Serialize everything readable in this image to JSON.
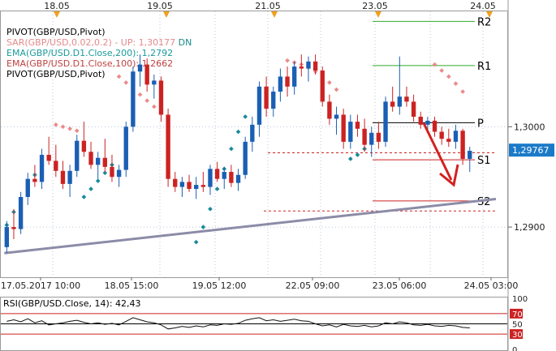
{
  "chart_data": {
    "type": "line",
    "title": "",
    "top_dates": [
      "18.05",
      "19.05",
      "21.05",
      "23.05",
      "24.05"
    ],
    "x_labels": [
      "17.05.2017 10:00",
      "18.05 15:00",
      "19.05 12:00",
      "22.05 09:00",
      "23.05 06:00",
      "24.05 03:00"
    ],
    "ylim": [
      1.285,
      1.3115
    ],
    "y_ticks": [
      {
        "value": 1.3,
        "label": "1,3000"
      },
      {
        "value": 1.29,
        "label": "1,2900"
      }
    ],
    "current_price": {
      "value": 1.29767,
      "label": "1,29767"
    },
    "legend": [
      {
        "text": "PIVOT(GBP/USD,Pivot)",
        "color": "#000000"
      },
      {
        "text": "SAR(GBP/USD,0.02,0.2) -  UP: 1,30177",
        "color": "#e58a8a"
      },
      {
        "text": "DN",
        "color": "#1a8a8a"
      },
      {
        "text": "EMA(GBP/USD.D1.Close,200): 1,2792",
        "color": "#1a9a9a"
      },
      {
        "text": "EMA(GBP/USD.D1.Close,100): 1,2662",
        "color": "#c04040"
      },
      {
        "text": "PIVOT(GBP/USD,Pivot)",
        "color": "#000000"
      }
    ],
    "pivots": [
      {
        "name": "R2",
        "value": 1.3105,
        "color": "#2eaa2e"
      },
      {
        "name": "R1",
        "value": 1.3061,
        "color": "#2eaa2e"
      },
      {
        "name": "P",
        "value": 1.3004,
        "color": "#000000"
      },
      {
        "name": "S1",
        "value": 1.2967,
        "color": "#cc2222"
      },
      {
        "name": "S2",
        "value": 1.2926,
        "color": "#cc2222"
      }
    ],
    "candles": [
      [
        1.288,
        1.2906,
        1.2874,
        1.29
      ],
      [
        1.29,
        1.2918,
        1.2888,
        1.2898
      ],
      [
        1.2898,
        1.2935,
        1.2893,
        1.293
      ],
      [
        1.293,
        1.2954,
        1.2922,
        1.2948
      ],
      [
        1.2948,
        1.2962,
        1.294,
        1.2945
      ],
      [
        1.2945,
        1.2978,
        1.2938,
        1.2972
      ],
      [
        1.2972,
        1.299,
        1.2962,
        1.2966
      ],
      [
        1.2966,
        1.2982,
        1.295,
        1.2956
      ],
      [
        1.2956,
        1.2966,
        1.2938,
        1.2943
      ],
      [
        1.2943,
        1.2962,
        1.293,
        1.2956
      ],
      [
        1.2956,
        1.2992,
        1.295,
        1.2986
      ],
      [
        1.2986,
        1.3005,
        1.297,
        1.2975
      ],
      [
        1.2975,
        1.2985,
        1.2958,
        1.2962
      ],
      [
        1.2962,
        1.2975,
        1.2948,
        1.2969
      ],
      [
        1.2969,
        1.2988,
        1.2955,
        1.296
      ],
      [
        1.296,
        1.2972,
        1.2945,
        1.295
      ],
      [
        1.295,
        1.2962,
        1.294,
        1.2957
      ],
      [
        1.2957,
        1.3005,
        1.295,
        1.3
      ],
      [
        1.3,
        1.306,
        1.2995,
        1.3055
      ],
      [
        1.3055,
        1.3072,
        1.304,
        1.3062
      ],
      [
        1.3062,
        1.3068,
        1.3035,
        1.3042
      ],
      [
        1.3042,
        1.3052,
        1.3028,
        1.3046
      ],
      [
        1.3046,
        1.305,
        1.3005,
        1.3012
      ],
      [
        1.3012,
        1.3018,
        1.294,
        1.2948
      ],
      [
        1.2948,
        1.2955,
        1.2935,
        1.294
      ],
      [
        1.294,
        1.295,
        1.293,
        1.2945
      ],
      [
        1.2945,
        1.2952,
        1.2935,
        1.2938
      ],
      [
        1.2938,
        1.295,
        1.2928,
        1.2942
      ],
      [
        1.2942,
        1.2955,
        1.2935,
        1.294
      ],
      [
        1.294,
        1.2962,
        1.2932,
        1.2958
      ],
      [
        1.2958,
        1.2965,
        1.2945,
        1.2948
      ],
      [
        1.2948,
        1.296,
        1.2938,
        1.2955
      ],
      [
        1.2955,
        1.2962,
        1.294,
        1.2944
      ],
      [
        1.2944,
        1.2958,
        1.2936,
        1.2952
      ],
      [
        1.2952,
        1.299,
        1.2948,
        1.2985
      ],
      [
        1.2985,
        1.301,
        1.2975,
        1.3002
      ],
      [
        1.3002,
        1.3045,
        1.299,
        1.304
      ],
      [
        1.304,
        1.305,
        1.301,
        1.3018
      ],
      [
        1.3018,
        1.304,
        1.301,
        1.3035
      ],
      [
        1.3035,
        1.3058,
        1.3025,
        1.305
      ],
      [
        1.305,
        1.306,
        1.303,
        1.304
      ],
      [
        1.304,
        1.3065,
        1.3032,
        1.306
      ],
      [
        1.306,
        1.3072,
        1.305,
        1.3058
      ],
      [
        1.3058,
        1.307,
        1.3045,
        1.3065
      ],
      [
        1.3065,
        1.3072,
        1.3052,
        1.3056
      ],
      [
        1.3056,
        1.306,
        1.302,
        1.3025
      ],
      [
        1.3025,
        1.3032,
        1.3002,
        1.3008
      ],
      [
        1.3008,
        1.302,
        1.2992,
        1.3012
      ],
      [
        1.3012,
        1.3018,
        1.2978,
        1.2985
      ],
      [
        1.2985,
        1.3012,
        1.2978,
        1.3005
      ],
      [
        1.3005,
        1.3012,
        1.299,
        1.2998
      ],
      [
        1.2998,
        1.3008,
        1.2975,
        1.2982
      ],
      [
        1.2982,
        1.3,
        1.297,
        1.2994
      ],
      [
        1.2994,
        1.3005,
        1.2978,
        1.2985
      ],
      [
        1.2985,
        1.303,
        1.298,
        1.3025
      ],
      [
        1.3025,
        1.304,
        1.3015,
        1.302
      ],
      [
        1.302,
        1.307,
        1.3012,
        1.303
      ],
      [
        1.303,
        1.304,
        1.302,
        1.3025
      ],
      [
        1.3025,
        1.3032,
        1.3005,
        1.301
      ],
      [
        1.301,
        1.3015,
        1.2998,
        1.3002
      ],
      [
        1.3002,
        1.301,
        1.2995,
        1.3006
      ],
      [
        1.3006,
        1.301,
        1.299,
        1.2995
      ],
      [
        1.2995,
        1.3,
        1.2982,
        1.2988
      ],
      [
        1.2988,
        1.2998,
        1.298,
        1.2985
      ],
      [
        1.2985,
        1.3002,
        1.2978,
        1.2996
      ],
      [
        1.2996,
        1.2998,
        1.2962,
        1.2968
      ],
      [
        1.2968,
        1.298,
        1.2955,
        1.2976
      ]
    ],
    "sar_up": [
      [
        7,
        1.3002
      ],
      [
        8,
        1.3
      ],
      [
        9,
        1.2998
      ],
      [
        10,
        1.2996
      ],
      [
        16,
        1.305
      ],
      [
        17,
        1.3044
      ],
      [
        18,
        1.3038
      ],
      [
        19,
        1.3032
      ],
      [
        20,
        1.3026
      ],
      [
        21,
        1.302
      ],
      [
        22,
        1.3015
      ],
      [
        40,
        1.3066
      ],
      [
        41,
        1.3064
      ],
      [
        42,
        1.3062
      ],
      [
        43,
        1.3059
      ],
      [
        44,
        1.3055
      ],
      [
        45,
        1.305
      ],
      [
        46,
        1.3044
      ],
      [
        47,
        1.3037
      ],
      [
        61,
        1.3062
      ],
      [
        62,
        1.3056
      ],
      [
        63,
        1.305
      ],
      [
        64,
        1.3043
      ],
      [
        65,
        1.3035
      ]
    ],
    "sar_dn": [
      [
        0,
        1.2902
      ],
      [
        1,
        1.2915
      ],
      [
        2,
        1.2928
      ],
      [
        3,
        1.294
      ],
      [
        4,
        1.2952
      ],
      [
        5,
        1.2962
      ],
      [
        11,
        1.293
      ],
      [
        12,
        1.2938
      ],
      [
        13,
        1.2946
      ],
      [
        14,
        1.2954
      ],
      [
        15,
        1.2962
      ],
      [
        27,
        1.2885
      ],
      [
        28,
        1.29
      ],
      [
        29,
        1.2918
      ],
      [
        30,
        1.2938
      ],
      [
        31,
        1.2958
      ],
      [
        32,
        1.2978
      ],
      [
        33,
        1.2995
      ],
      [
        34,
        1.301
      ],
      [
        49,
        1.2968
      ],
      [
        50,
        1.2972
      ],
      [
        51,
        1.2978
      ],
      [
        52,
        1.2984
      ],
      [
        53,
        1.299
      ],
      [
        54,
        1.2996
      ]
    ],
    "trendline": [
      [
        0,
        1.2874
      ],
      [
        70,
        1.2928
      ]
    ],
    "rsi": {
      "label": "RSI(GBP/USD.Close, 14): 42,43",
      "levels": [
        {
          "value": 100,
          "label": "100"
        },
        {
          "value": 70,
          "label": "70"
        },
        {
          "value": 50,
          "label": "50"
        },
        {
          "value": 30,
          "label": "30"
        },
        {
          "value": 0,
          "label": "0"
        }
      ],
      "values": [
        55,
        58,
        54,
        60,
        52,
        56,
        48,
        50,
        52,
        55,
        57,
        53,
        50,
        52,
        49,
        51,
        48,
        55,
        62,
        58,
        54,
        52,
        48,
        40,
        42,
        45,
        43,
        46,
        44,
        48,
        47,
        50,
        49,
        51,
        57,
        60,
        62,
        56,
        58,
        55,
        57,
        59,
        56,
        55,
        50,
        46,
        48,
        44,
        49,
        46,
        45,
        47,
        44,
        46,
        52,
        50,
        54,
        52,
        48,
        47,
        49,
        46,
        45,
        47,
        46,
        43,
        42
      ]
    }
  }
}
